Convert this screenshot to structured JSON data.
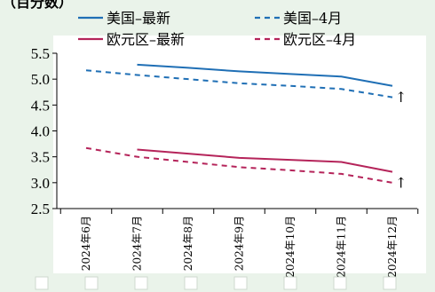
{
  "page_title": "（百分数）",
  "colors": {
    "us": "#1f6fb5",
    "ez": "#b5245a",
    "background": "#eaf3ea",
    "plot_background": "#ffffff"
  },
  "chart_data": {
    "type": "line",
    "categories": [
      "2024年6月",
      "2024年7月",
      "2024年8月",
      "2024年9月",
      "2024年10月",
      "2024年11月",
      "2024年12月"
    ],
    "ylim": [
      2.5,
      5.5
    ],
    "yticks": [
      "2.5",
      "3.0",
      "3.5",
      "4.0",
      "4.5",
      "5.0",
      "5.5"
    ],
    "series": [
      {
        "name": "美国–最新",
        "style": "solid",
        "color": "#1f6fb5",
        "values": [
          null,
          5.28,
          5.22,
          5.15,
          5.1,
          5.05,
          4.87
        ]
      },
      {
        "name": "美国–4月",
        "style": "dashed",
        "color": "#1f6fb5",
        "values": [
          5.17,
          5.08,
          5.0,
          4.92,
          4.87,
          4.81,
          4.65
        ]
      },
      {
        "name": "欧元区–最新",
        "style": "solid",
        "color": "#b5245a",
        "values": [
          null,
          3.64,
          3.56,
          3.48,
          3.44,
          3.4,
          3.21
        ]
      },
      {
        "name": "欧元区–4月",
        "style": "dashed",
        "color": "#b5245a",
        "values": [
          3.67,
          3.5,
          3.4,
          3.3,
          3.24,
          3.17,
          3.0
        ]
      }
    ],
    "annotations": [
      "↑",
      "↑"
    ]
  }
}
